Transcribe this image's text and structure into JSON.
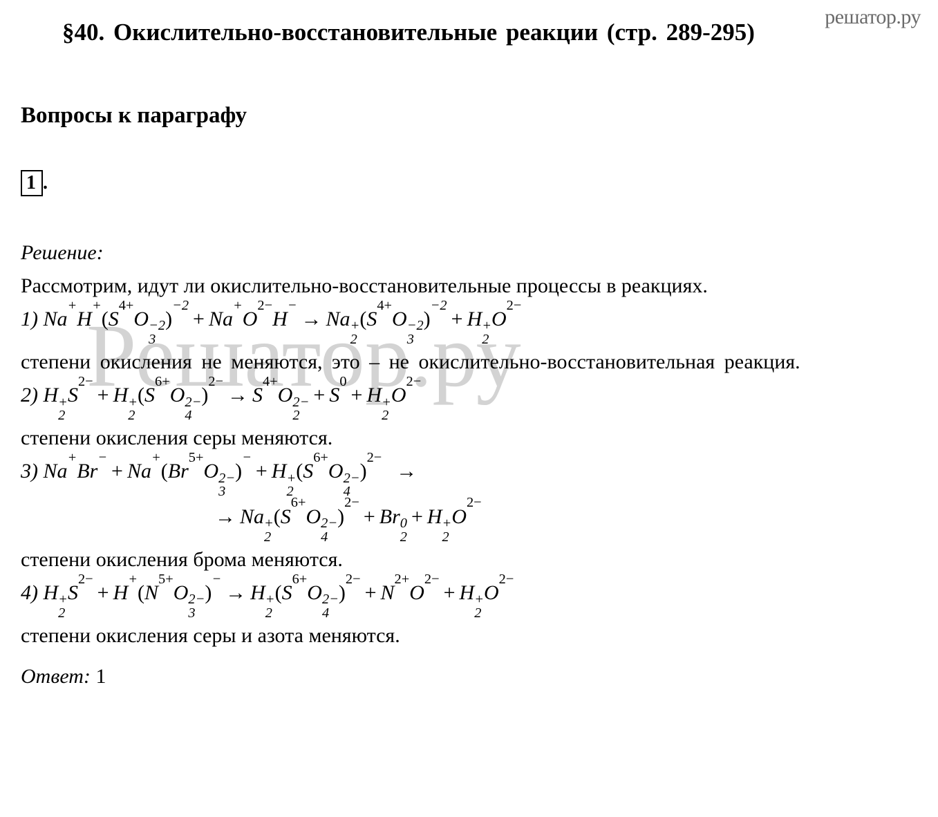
{
  "watermark": {
    "corner": "решатор.ру",
    "center": "Решатор.ру"
  },
  "title": "§40. Окислительно-восстановительные реакции (стр. 289-295)",
  "subtitle": "Вопросы к параграфу",
  "question_number": "1",
  "solution_label": "Решение:",
  "intro": "Рассмотрим, идут ли окислительно-восстановительные процессы в реакциях.",
  "item1": {
    "num": "1) ",
    "note": "степени окисления не меняются, это – не окислительно-восстановительная реакция."
  },
  "item2": {
    "num": "2) ",
    "note": "степени окисления серы меняются."
  },
  "item3": {
    "num": "3) ",
    "note": "степени окисления брома меняются."
  },
  "item4": {
    "num": "4) ",
    "note": "степени окисления серы и азота меняются."
  },
  "answer_label": "Ответ:",
  "answer_value": "1",
  "colors": {
    "text": "#000000",
    "background": "#ffffff",
    "watermark": "#7a7a7a"
  },
  "fonts": {
    "body": "Times New Roman",
    "size_title": 35,
    "size_body": 30
  }
}
